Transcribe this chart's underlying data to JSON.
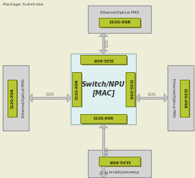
{
  "bg_outer": "#eeeed8",
  "bg_inner_box": "#dff0f0",
  "green_fc": "#b8c832",
  "green_ec": "#6a7a10",
  "green_shadow": "#888840",
  "gray_fc": "#d4d4d4",
  "gray_ec": "#909090",
  "arrow_fc": "#c8c8c8",
  "arrow_ec": "#909090",
  "title_text": "Package Substrate",
  "center_line1": "Switch/NPU",
  "center_line2": "[MAC]",
  "chip_label": "112G-XSR",
  "pmd_label": "Ethernet/Optical PMD",
  "arrow_label": "112G",
  "fig_w": 2.84,
  "fig_h": 2.59,
  "dpi": 100
}
